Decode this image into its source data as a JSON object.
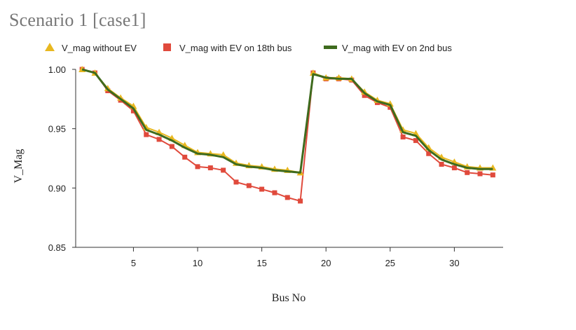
{
  "chart_data": {
    "type": "line",
    "title": "Scenario 1 [case1]",
    "xlabel": "Bus No",
    "ylabel": "V_Mag",
    "xlim": [
      0.5,
      33.8
    ],
    "ylim": [
      0.85,
      1.0
    ],
    "xticks": [
      5,
      10,
      15,
      20,
      25,
      30
    ],
    "yticks": [
      0.85,
      0.9,
      0.95,
      1.0
    ],
    "ytick_labels": [
      "0.85",
      "0.90",
      "0.95",
      "1.00"
    ],
    "legend_position": "top",
    "grid": false,
    "x": [
      1,
      2,
      3,
      4,
      5,
      6,
      7,
      8,
      9,
      10,
      11,
      12,
      13,
      14,
      15,
      16,
      17,
      18,
      19,
      20,
      21,
      22,
      23,
      24,
      25,
      26,
      27,
      28,
      29,
      30,
      31,
      32,
      33
    ],
    "series": [
      {
        "name": "V_mag without EV",
        "color": "#e8b820",
        "marker": "triangle",
        "values": [
          1.0,
          0.997,
          0.984,
          0.976,
          0.969,
          0.951,
          0.947,
          0.942,
          0.936,
          0.93,
          0.929,
          0.928,
          0.921,
          0.919,
          0.918,
          0.916,
          0.915,
          0.913,
          0.997,
          0.993,
          0.993,
          0.992,
          0.981,
          0.974,
          0.971,
          0.949,
          0.946,
          0.934,
          0.926,
          0.922,
          0.918,
          0.917,
          0.917
        ]
      },
      {
        "name": "V_mag with EV on 18th bus",
        "color": "#e04a3c",
        "marker": "square",
        "values": [
          1.0,
          0.997,
          0.982,
          0.974,
          0.965,
          0.945,
          0.941,
          0.935,
          0.926,
          0.918,
          0.917,
          0.915,
          0.905,
          0.902,
          0.899,
          0.896,
          0.892,
          0.889,
          0.997,
          0.992,
          0.992,
          0.991,
          0.978,
          0.972,
          0.968,
          0.943,
          0.94,
          0.929,
          0.92,
          0.917,
          0.913,
          0.912,
          0.911
        ]
      },
      {
        "name": "V_mag with EV on 2nd bus",
        "color": "#3e6b1e",
        "marker": "line",
        "values": [
          1.0,
          0.997,
          0.983,
          0.975,
          0.967,
          0.949,
          0.945,
          0.94,
          0.934,
          0.929,
          0.928,
          0.926,
          0.92,
          0.918,
          0.917,
          0.915,
          0.914,
          0.913,
          0.996,
          0.993,
          0.992,
          0.992,
          0.98,
          0.973,
          0.97,
          0.947,
          0.944,
          0.932,
          0.924,
          0.92,
          0.917,
          0.916,
          0.916
        ]
      }
    ]
  }
}
